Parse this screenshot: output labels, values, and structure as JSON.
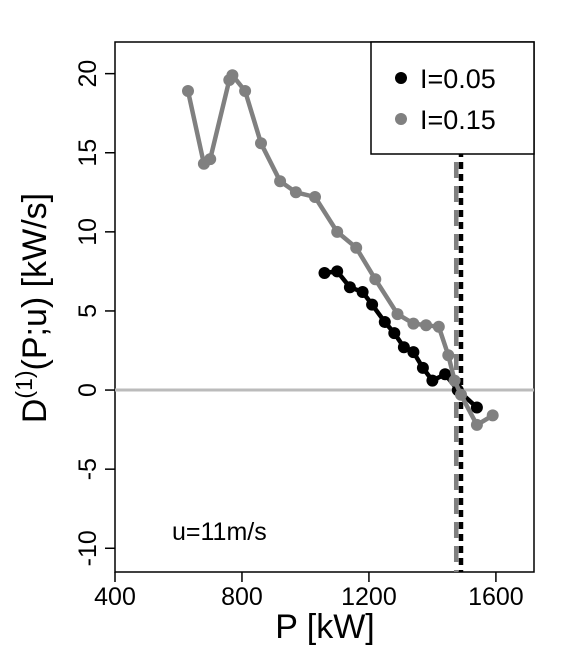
{
  "chart_data": {
    "type": "line",
    "title": "",
    "xlabel": "P [kW]",
    "ylabel_main": "D",
    "ylabel_superscript": "(1)",
    "ylabel_rest": "(P;u) [kW/s]",
    "xlim": [
      400,
      1720
    ],
    "ylim": [
      -11.5,
      22
    ],
    "x_ticks": [
      400,
      800,
      1200,
      1600
    ],
    "y_ticks": [
      -10,
      -5,
      0,
      5,
      10,
      15,
      20
    ],
    "annotation": "u=11m/s",
    "legend_position": "top-right",
    "zero_line_color": "#bbbbbb",
    "series": [
      {
        "name": "I=0.05",
        "color": "#000000",
        "points": [
          {
            "x": 1060,
            "y": 7.4
          },
          {
            "x": 1100,
            "y": 7.5
          },
          {
            "x": 1140,
            "y": 6.5
          },
          {
            "x": 1180,
            "y": 6.2
          },
          {
            "x": 1210,
            "y": 5.4
          },
          {
            "x": 1250,
            "y": 4.3
          },
          {
            "x": 1280,
            "y": 3.6
          },
          {
            "x": 1310,
            "y": 2.7
          },
          {
            "x": 1340,
            "y": 2.4
          },
          {
            "x": 1370,
            "y": 1.4
          },
          {
            "x": 1400,
            "y": 0.6
          },
          {
            "x": 1440,
            "y": 1.0
          },
          {
            "x": 1480,
            "y": 0.0
          },
          {
            "x": 1540,
            "y": -1.1
          }
        ],
        "vline_x": 1490
      },
      {
        "name": "I=0.15",
        "color": "#808080",
        "points": [
          {
            "x": 630,
            "y": 18.9
          },
          {
            "x": 680,
            "y": 14.3
          },
          {
            "x": 700,
            "y": 14.6
          },
          {
            "x": 760,
            "y": 19.6
          },
          {
            "x": 770,
            "y": 19.9
          },
          {
            "x": 810,
            "y": 18.9
          },
          {
            "x": 860,
            "y": 15.6
          },
          {
            "x": 920,
            "y": 13.2
          },
          {
            "x": 970,
            "y": 12.5
          },
          {
            "x": 1030,
            "y": 12.2
          },
          {
            "x": 1100,
            "y": 10.0
          },
          {
            "x": 1160,
            "y": 9.0
          },
          {
            "x": 1220,
            "y": 7.0
          },
          {
            "x": 1290,
            "y": 4.8
          },
          {
            "x": 1340,
            "y": 4.2
          },
          {
            "x": 1380,
            "y": 4.1
          },
          {
            "x": 1420,
            "y": 4.0
          },
          {
            "x": 1450,
            "y": 2.2
          },
          {
            "x": 1470,
            "y": 0.6
          },
          {
            "x": 1490,
            "y": -0.3
          },
          {
            "x": 1540,
            "y": -2.2
          },
          {
            "x": 1590,
            "y": -1.6
          }
        ],
        "vline_x": 1475
      }
    ]
  }
}
